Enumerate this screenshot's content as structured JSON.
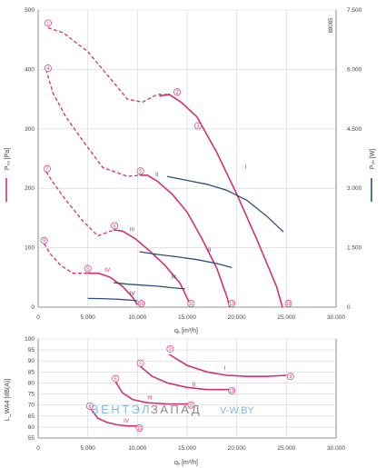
{
  "document_id": "88085",
  "watermark": {
    "part1": "ВЕНТЭЛ",
    "part2": "ЗАПАД",
    "part3": "V-W.BY"
  },
  "colors": {
    "pressure": "#cc3377",
    "power": "#2d4f78",
    "grid": "#d4d4d4",
    "axis": "#777777",
    "label": "#444444"
  },
  "chart_data": [
    {
      "type": "line",
      "ylabel": "Pₛₐ [Pa]",
      "y2label": "Pₛₕ [W]",
      "xlabel": "qᵥ [m³/h]",
      "xlim": [
        0,
        30000
      ],
      "ylim": [
        0,
        500
      ],
      "y2lim": [
        0,
        7500
      ],
      "xticks": [
        "0",
        "5.000",
        "10.000",
        "15.000",
        "20.000",
        "25.000",
        "30.000"
      ],
      "yticks": [
        "0",
        "100",
        "200",
        "300",
        "400",
        "500"
      ],
      "y2ticks": [
        "0",
        "1.500",
        "3.000",
        "4.500",
        "6.000",
        "7.500"
      ],
      "grid": true,
      "pressure_curves": [
        {
          "name": "I",
          "x": [
            12200,
            13200,
            14400,
            16000,
            18000,
            20000,
            22000,
            24000,
            24600
          ],
          "y": [
            355,
            358,
            345,
            320,
            260,
            190,
            115,
            35,
            0
          ],
          "label_at": [
            14000,
            355
          ]
        },
        {
          "name": "II",
          "x": [
            10200,
            11000,
            12000,
            13500,
            15000,
            16500,
            18000,
            19000,
            19300
          ],
          "y": [
            222,
            222,
            212,
            190,
            160,
            115,
            65,
            18,
            0
          ],
          "label_at": [
            11800,
            220
          ]
        },
        {
          "name": "III",
          "x": [
            7600,
            8500,
            9800,
            11200,
            12800,
            14300,
            15100,
            15400
          ],
          "y": [
            130,
            128,
            115,
            95,
            70,
            40,
            12,
            0
          ],
          "label_at": [
            9200,
            128
          ]
        },
        {
          "name": "IV",
          "x": [
            5000,
            6100,
            7300,
            8500,
            9500,
            10000
          ],
          "y": [
            57,
            57,
            50,
            35,
            17,
            4
          ],
          "label_at": [
            6700,
            60
          ]
        }
      ],
      "dashed_envelopes": [
        {
          "x": [
            1000,
            2500,
            5000,
            7000,
            9000,
            10500,
            12000,
            13200
          ],
          "y": [
            470,
            462,
            430,
            390,
            350,
            345,
            358,
            358
          ]
        },
        {
          "x": [
            800,
            1500,
            2800,
            4500,
            6500,
            9000,
            10300
          ],
          "y": [
            400,
            360,
            320,
            280,
            235,
            220,
            222
          ]
        },
        {
          "x": [
            800,
            1500,
            2800,
            4500,
            6000,
            7600
          ],
          "y": [
            228,
            210,
            180,
            145,
            120,
            130
          ]
        },
        {
          "x": [
            600,
            1200,
            2300,
            3500,
            5000
          ],
          "y": [
            107,
            90,
            70,
            57,
            57
          ]
        }
      ],
      "power_curves": [
        {
          "name": "I",
          "x": [
            13000,
            15000,
            17000,
            19000,
            21000,
            23000,
            24700
          ],
          "y": [
            3300,
            3200,
            3100,
            2950,
            2700,
            2300,
            1900
          ],
          "label_at": [
            20800,
            3500
          ]
        },
        {
          "name": "II",
          "x": [
            10200,
            12000,
            14000,
            16000,
            18000,
            19500
          ],
          "y": [
            1400,
            1330,
            1270,
            1200,
            1100,
            1000
          ],
          "label_at": [
            17100,
            1400
          ]
        },
        {
          "name": "III",
          "x": [
            7600,
            9000,
            10500,
            12000,
            13500,
            14800
          ],
          "y": [
            620,
            580,
            555,
            530,
            490,
            460
          ],
          "label_at": [
            13400,
            720
          ]
        },
        {
          "name": "IV",
          "x": [
            5000,
            6500,
            8000,
            9500,
            10000
          ],
          "y": [
            220,
            215,
            200,
            175,
            160
          ],
          "label_at": [
            9200,
            300
          ]
        }
      ],
      "circle_markers": [
        {
          "num": "1",
          "x": 1000,
          "y": 478
        },
        {
          "num": "2",
          "x": 14000,
          "y": 362
        },
        {
          "num": "3",
          "x": 16100,
          "y": 305
        },
        {
          "num": "4",
          "x": 1000,
          "y": 402
        },
        {
          "num": "5",
          "x": 10300,
          "y": 229
        },
        {
          "num": "6",
          "x": 7700,
          "y": 137
        },
        {
          "num": "7",
          "x": 900,
          "y": 233
        },
        {
          "num": "8",
          "x": 5000,
          "y": 65
        },
        {
          "num": "9",
          "x": 600,
          "y": 112
        },
        {
          "num": "10",
          "x": 10400,
          "y": 6
        },
        {
          "num": "11",
          "x": 15400,
          "y": 6
        },
        {
          "num": "12",
          "x": 19500,
          "y": 6
        },
        {
          "num": "13",
          "x": 25200,
          "y": 6
        }
      ]
    },
    {
      "type": "line",
      "ylabel": "L_WA4 [dB(A)]",
      "xlabel": "qᵥ [m³/h]",
      "xlim": [
        0,
        30000
      ],
      "ylim": [
        55,
        100
      ],
      "xticks": [
        "0",
        "5.000",
        "10.000",
        "15.000",
        "20.000",
        "25.000",
        "30.000"
      ],
      "yticks": [
        "55",
        "60",
        "65",
        "70",
        "75",
        "80",
        "85",
        "90",
        "95",
        "100"
      ],
      "grid": true,
      "curves": [
        {
          "name": "I",
          "x": [
            13200,
            15000,
            17000,
            19000,
            21000,
            23000,
            25000
          ],
          "y": [
            93,
            88,
            85,
            83.5,
            83,
            83,
            83.5
          ],
          "label_at": [
            18700,
            86
          ]
        },
        {
          "name": "II",
          "x": [
            10300,
            11500,
            13000,
            15000,
            17000,
            19400
          ],
          "y": [
            87.5,
            83,
            80,
            78,
            77,
            77
          ],
          "label_at": [
            15500,
            78.5
          ]
        },
        {
          "name": "III",
          "x": [
            7800,
            8500,
            9500,
            11000,
            13000,
            15300
          ],
          "y": [
            80.5,
            75.5,
            72.5,
            71,
            70.5,
            70.5
          ],
          "label_at": [
            11000,
            72.5
          ]
        },
        {
          "name": "IV",
          "x": [
            5200,
            6000,
            7000,
            8000,
            9000,
            10000
          ],
          "y": [
            69,
            64,
            62,
            61,
            60.5,
            60.5
          ],
          "label_at": [
            8600,
            62
          ]
        }
      ],
      "circle_markers": [
        {
          "num": "2",
          "x": 13300,
          "y": 95.5
        },
        {
          "num": "3",
          "x": 25400,
          "y": 83
        },
        {
          "num": "5",
          "x": 10300,
          "y": 89
        },
        {
          "num": "6",
          "x": 7800,
          "y": 82
        },
        {
          "num": "8",
          "x": 5200,
          "y": 69.5
        },
        {
          "num": "10",
          "x": 10200,
          "y": 59.5
        },
        {
          "num": "11",
          "x": 15400,
          "y": 70
        },
        {
          "num": "12",
          "x": 19500,
          "y": 76.5
        }
      ]
    }
  ]
}
